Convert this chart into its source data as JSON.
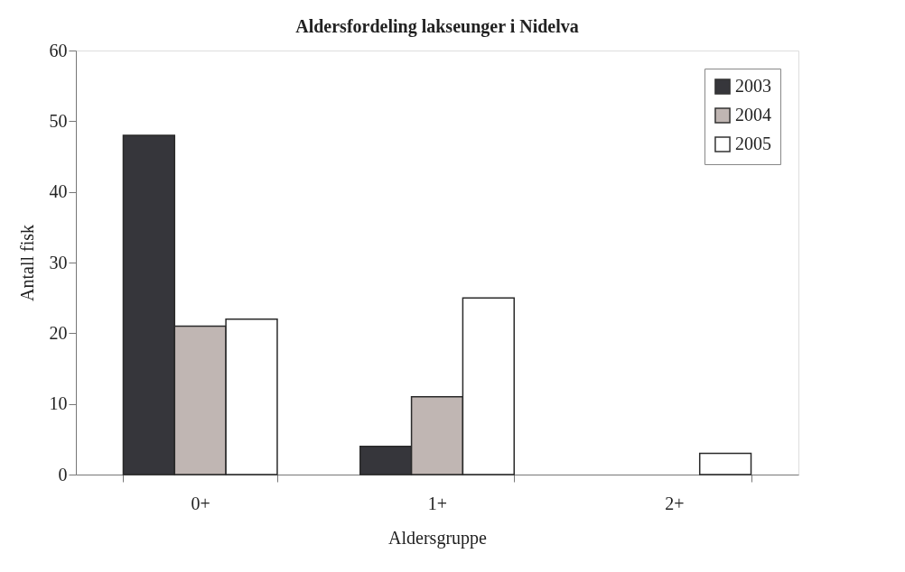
{
  "chart_data": {
    "type": "bar",
    "title": "Aldersfordeling lakseunger i Nidelva",
    "xlabel": "Aldersgruppe",
    "ylabel": "Antall fisk",
    "categories": [
      "0+",
      "1+",
      "2+"
    ],
    "series": [
      {
        "name": "2003",
        "color": "#36363b",
        "values": [
          48,
          4,
          0
        ]
      },
      {
        "name": "2004",
        "color": "#c0b6b3",
        "values": [
          21,
          11,
          0
        ]
      },
      {
        "name": "2005",
        "color": "#ffffff",
        "values": [
          22,
          25,
          3
        ]
      }
    ],
    "ylim": [
      0,
      60
    ],
    "yticks": [
      0,
      10,
      20,
      30,
      40,
      50,
      60
    ],
    "grid": false,
    "legend": "top right"
  }
}
